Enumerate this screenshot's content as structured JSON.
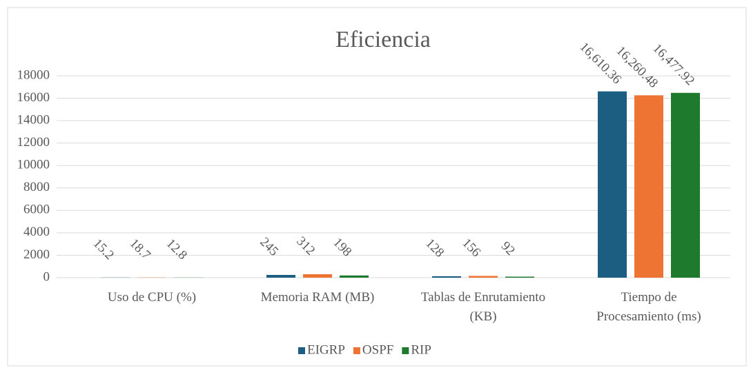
{
  "chart_data": {
    "type": "bar",
    "title": "Eficiencia",
    "categories": [
      "Uso de CPU (%)",
      "Memoria RAM (MB)",
      "Tablas de Enrutamiento (KB)",
      "Tiempo de Procesamiento (ms)"
    ],
    "series": [
      {
        "name": "EIGRP",
        "color": "#1b5e82",
        "values": [
          15.2,
          245,
          128,
          16610.36
        ],
        "value_labels": [
          "15.2",
          "245",
          "128",
          "16,610.36"
        ]
      },
      {
        "name": "OSPF",
        "color": "#ed7432",
        "values": [
          18.7,
          312,
          156,
          16260.48
        ],
        "value_labels": [
          "18.7",
          "312",
          "156",
          "16,260.48"
        ]
      },
      {
        "name": "RIP",
        "color": "#1e7a2d",
        "values": [
          12.8,
          198,
          92,
          16477.92
        ],
        "value_labels": [
          "12.8",
          "198",
          "92",
          "16,477.92"
        ]
      }
    ],
    "ylim": [
      0,
      18000
    ],
    "yticks": [
      0,
      2000,
      4000,
      6000,
      8000,
      10000,
      12000,
      14000,
      16000,
      18000
    ],
    "grid": true,
    "legend": "bottom"
  }
}
